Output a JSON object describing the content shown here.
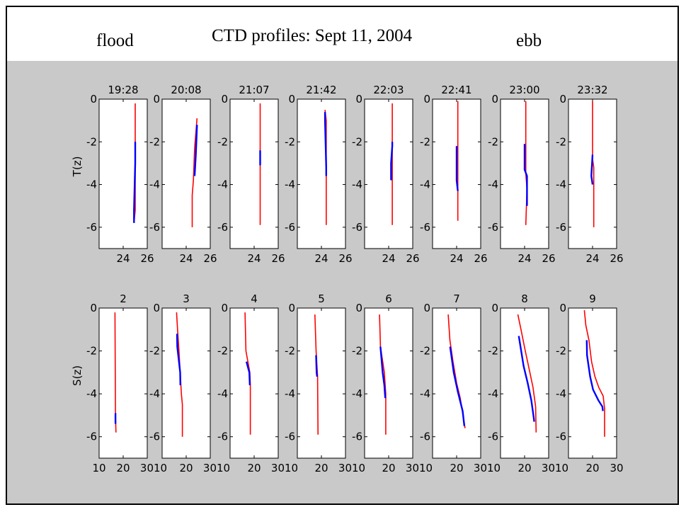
{
  "header": {
    "flood_label": "flood",
    "title": "CTD profiles: Sept 11, 2004",
    "ebb_label": "ebb"
  },
  "colors": {
    "background": "#c9c9c9",
    "series_red": "#ff0000",
    "series_blue": "#0000ff"
  },
  "chart_data": [
    {
      "type": "line",
      "row_ylabel": "T(z)",
      "titles": [
        "19:28",
        "20:08",
        "21:07",
        "21:42",
        "22:03",
        "22:41",
        "23:00",
        "23:32"
      ],
      "xlim": [
        22,
        26
      ],
      "xticks": [
        24,
        26
      ],
      "xticklabels": [
        "24",
        "26",
        "24",
        "26",
        "24",
        "26",
        "24",
        "26",
        "24",
        "26",
        "24",
        "26",
        "24",
        "26",
        "24",
        "26"
      ],
      "ylim": [
        -7,
        0
      ],
      "yticks": [
        0,
        -2,
        -4,
        -6
      ],
      "panels": [
        {
          "red": [
            [
              25,
              -0.2
            ],
            [
              25,
              -5.2
            ],
            [
              24.9,
              -5.8
            ]
          ],
          "blue": [
            [
              25,
              -2
            ],
            [
              25,
              -3
            ],
            [
              24.9,
              -5.2
            ],
            [
              24.9,
              -5.8
            ]
          ]
        },
        {
          "red": [
            [
              24.9,
              -0.9
            ],
            [
              24.7,
              -2.3
            ],
            [
              24.6,
              -3.8
            ],
            [
              24.5,
              -4.5
            ],
            [
              24.5,
              -6
            ]
          ],
          "blue": [
            [
              24.9,
              -1.2
            ],
            [
              24.8,
              -2.6
            ],
            [
              24.7,
              -3.6
            ]
          ]
        },
        {
          "red": [
            [
              24.5,
              -0.2
            ],
            [
              24.5,
              -5.9
            ]
          ],
          "blue": [
            [
              24.5,
              -2.4
            ],
            [
              24.5,
              -3.1
            ]
          ]
        },
        {
          "red": [
            [
              24.3,
              -0.5
            ],
            [
              24.4,
              -1
            ],
            [
              24.4,
              -5.9
            ]
          ],
          "blue": [
            [
              24.3,
              -0.6
            ],
            [
              24.3,
              -1
            ],
            [
              24.4,
              -3.2
            ],
            [
              24.4,
              -3.6
            ]
          ]
        },
        {
          "red": [
            [
              24.3,
              -0.2
            ],
            [
              24.3,
              -5.9
            ]
          ],
          "blue": [
            [
              24.3,
              -2
            ],
            [
              24.3,
              -2.2
            ],
            [
              24.2,
              -3
            ],
            [
              24.2,
              -3.8
            ]
          ]
        },
        {
          "red": [
            [
              24.1,
              -0.1
            ],
            [
              24.1,
              -5.7
            ]
          ],
          "blue": [
            [
              24,
              -2.2
            ],
            [
              24,
              -3.8
            ],
            [
              24.1,
              -4.3
            ]
          ]
        },
        {
          "red": [
            [
              24.1,
              -0.1
            ],
            [
              24.1,
              -3.5
            ],
            [
              24.2,
              -4.2
            ],
            [
              24.1,
              -5.9
            ]
          ],
          "blue": [
            [
              24,
              -2.1
            ],
            [
              24,
              -3.3
            ],
            [
              24.2,
              -3.6
            ],
            [
              24.2,
              -5
            ]
          ]
        },
        {
          "red": [
            [
              24,
              -0.1
            ],
            [
              24,
              -2.8
            ],
            [
              24.1,
              -3.2
            ],
            [
              24.1,
              -6
            ]
          ],
          "blue": [
            [
              24,
              -2.6
            ],
            [
              23.9,
              -3.6
            ],
            [
              24,
              -4
            ]
          ]
        }
      ]
    },
    {
      "type": "line",
      "row_ylabel": "S(z)",
      "titles": [
        "2",
        "3",
        "4",
        "5",
        "6",
        "7",
        "8",
        "9"
      ],
      "xlim": [
        10,
        30
      ],
      "xticks": [
        10,
        20,
        30
      ],
      "xticklabels": [
        "10",
        "20",
        "3010",
        "20",
        "3010",
        "20",
        "3010",
        "20",
        "3010",
        "20",
        "3010",
        "20",
        "3010",
        "20",
        "3010",
        "20",
        "30"
      ],
      "ylim": [
        -7,
        0
      ],
      "yticks": [
        0,
        -2,
        -4,
        -6
      ],
      "panels": [
        {
          "red": [
            [
              16.6,
              -0.2
            ],
            [
              16.8,
              -5
            ],
            [
              17,
              -5.8
            ]
          ],
          "blue": [
            [
              16.8,
              -4.9
            ],
            [
              16.8,
              -5.4
            ]
          ]
        },
        {
          "red": [
            [
              16,
              -0.2
            ],
            [
              16.4,
              -1
            ],
            [
              17,
              -2
            ],
            [
              17.5,
              -3
            ],
            [
              18,
              -4
            ],
            [
              18.4,
              -4.5
            ],
            [
              18.4,
              -6
            ]
          ],
          "blue": [
            [
              16.2,
              -1.2
            ],
            [
              16.3,
              -1.8
            ],
            [
              17.5,
              -3
            ],
            [
              17.6,
              -3.6
            ]
          ]
        },
        {
          "red": [
            [
              16.2,
              -0.2
            ],
            [
              16.6,
              -2
            ],
            [
              18.2,
              -3
            ],
            [
              18.4,
              -3.6
            ],
            [
              18.4,
              -5.9
            ]
          ],
          "blue": [
            [
              16.8,
              -2.5
            ],
            [
              18,
              -3
            ],
            [
              18.2,
              -3.6
            ]
          ]
        },
        {
          "red": [
            [
              17.3,
              -0.3
            ],
            [
              17.8,
              -2
            ],
            [
              18.4,
              -3.2
            ],
            [
              18.6,
              -5.9
            ]
          ],
          "blue": [
            [
              17.8,
              -2.2
            ],
            [
              18,
              -3
            ],
            [
              18.2,
              -3.2
            ]
          ]
        },
        {
          "red": [
            [
              16.2,
              -0.3
            ],
            [
              16.6,
              -1.8
            ],
            [
              18.2,
              -3
            ],
            [
              18.8,
              -4
            ],
            [
              18.8,
              -5.9
            ]
          ],
          "blue": [
            [
              16.6,
              -1.8
            ],
            [
              17.5,
              -3
            ],
            [
              18.2,
              -3.6
            ],
            [
              18.6,
              -4.2
            ]
          ]
        },
        {
          "red": [
            [
              16.5,
              -0.3
            ],
            [
              17.2,
              -1.5
            ],
            [
              18.5,
              -2.5
            ],
            [
              20,
              -3.5
            ],
            [
              21.5,
              -4.2
            ],
            [
              22.8,
              -5.1
            ],
            [
              23.5,
              -5.6
            ]
          ],
          "blue": [
            [
              17.3,
              -1.8
            ],
            [
              18.8,
              -3
            ],
            [
              20.5,
              -3.9
            ],
            [
              22.5,
              -4.8
            ],
            [
              23.2,
              -5.5
            ]
          ]
        },
        {
          "red": [
            [
              17.2,
              -0.3
            ],
            [
              18.5,
              -1
            ],
            [
              20.3,
              -2
            ],
            [
              22,
              -2.9
            ],
            [
              23.5,
              -3.7
            ],
            [
              24.6,
              -4.6
            ],
            [
              24.8,
              -5.8
            ]
          ],
          "blue": [
            [
              17.6,
              -1.3
            ],
            [
              18.6,
              -2
            ],
            [
              19.6,
              -2.7
            ],
            [
              21.3,
              -3.5
            ],
            [
              22.8,
              -4.3
            ],
            [
              23.8,
              -5.1
            ],
            [
              24,
              -5.3
            ]
          ]
        },
        {
          "red": [
            [
              16.6,
              -0.1
            ],
            [
              17.2,
              -0.8
            ],
            [
              18.5,
              -1.5
            ],
            [
              19.6,
              -2.5
            ],
            [
              21,
              -3.2
            ],
            [
              22.6,
              -3.7
            ],
            [
              24.4,
              -4.1
            ],
            [
              25,
              -4.7
            ],
            [
              25,
              -6
            ]
          ],
          "blue": [
            [
              17.6,
              -1.5
            ],
            [
              17.7,
              -2.2
            ],
            [
              19,
              -3.2
            ],
            [
              20.2,
              -3.8
            ],
            [
              22.4,
              -4.3
            ],
            [
              24.1,
              -4.6
            ],
            [
              24.3,
              -4.8
            ]
          ]
        }
      ]
    }
  ]
}
